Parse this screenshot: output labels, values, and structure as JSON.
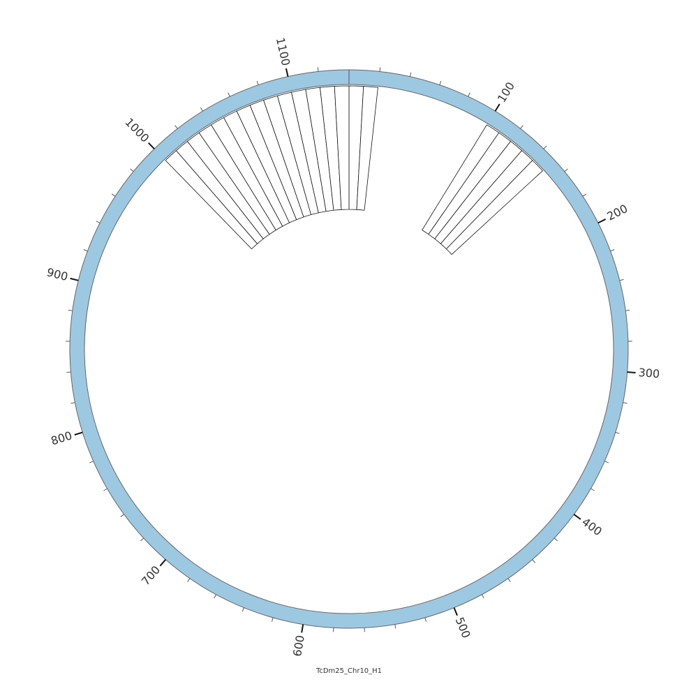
{
  "chart_data": {
    "type": "circular",
    "title": "TcDm25_Chr10_H1",
    "xlim": [
      0,
      1140
    ],
    "xticks": [
      100,
      200,
      300,
      400,
      500,
      600,
      700,
      800,
      900,
      1000,
      1100
    ],
    "minor_xticks": [
      20,
      40,
      60,
      80,
      120,
      140,
      160,
      180,
      220,
      240,
      260,
      280,
      320,
      340,
      360,
      380,
      420,
      440,
      460,
      480,
      520,
      540,
      560,
      580,
      620,
      640,
      660,
      680,
      720,
      740,
      760,
      780,
      820,
      840,
      860,
      880,
      920,
      940,
      960,
      980,
      1020,
      1040,
      1060,
      1080,
      1120
    ],
    "ring_color": "#9dc8e2",
    "features": [
      {
        "start": 0,
        "end": 10
      },
      {
        "start": 10,
        "end": 20
      },
      {
        "start": 100,
        "end": 110
      },
      {
        "start": 110,
        "end": 120
      },
      {
        "start": 120,
        "end": 130
      },
      {
        "start": 130,
        "end": 140
      },
      {
        "start": 140,
        "end": 150
      },
      {
        "start": 1000,
        "end": 1010
      },
      {
        "start": 1010,
        "end": 1020
      },
      {
        "start": 1020,
        "end": 1030
      },
      {
        "start": 1030,
        "end": 1040
      },
      {
        "start": 1040,
        "end": 1050
      },
      {
        "start": 1050,
        "end": 1060
      },
      {
        "start": 1060,
        "end": 1070
      },
      {
        "start": 1070,
        "end": 1080
      },
      {
        "start": 1080,
        "end": 1090
      },
      {
        "start": 1090,
        "end": 1100
      },
      {
        "start": 1100,
        "end": 1110
      },
      {
        "start": 1110,
        "end": 1120
      },
      {
        "start": 1120,
        "end": 1130
      },
      {
        "start": 1130,
        "end": 1140
      }
    ]
  }
}
